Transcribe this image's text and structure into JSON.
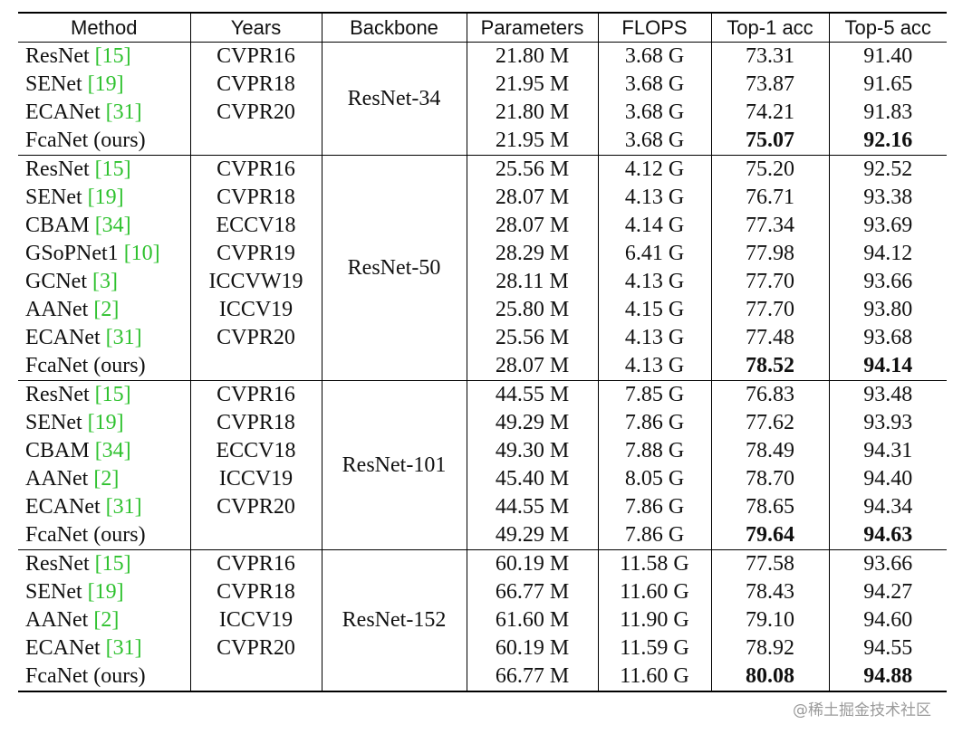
{
  "header": [
    "Method",
    "Years",
    "Backbone",
    "Parameters",
    "FLOPS",
    "Top-1 acc",
    "Top-5 acc"
  ],
  "groups": [
    {
      "backbone": "ResNet-34",
      "rows": [
        {
          "method": "ResNet",
          "cite": "[15]",
          "years": "CVPR16",
          "params": "21.80 M",
          "flops": "3.68 G",
          "top1": "73.31",
          "top5": "91.40"
        },
        {
          "method": "SENet",
          "cite": "[19]",
          "years": "CVPR18",
          "params": "21.95 M",
          "flops": "3.68 G",
          "top1": "73.87",
          "top5": "91.65"
        },
        {
          "method": "ECANet",
          "cite": "[31]",
          "years": "CVPR20",
          "params": "21.80 M",
          "flops": "3.68 G",
          "top1": "74.21",
          "top5": "91.83"
        },
        {
          "method": "FcaNet (ours)",
          "params": "21.95 M",
          "flops": "3.68 G",
          "top1": "75.07",
          "top5": "92.16"
        }
      ]
    },
    {
      "backbone": "ResNet-50",
      "rows": [
        {
          "method": "ResNet",
          "cite": "[15]",
          "years": "CVPR16",
          "params": "25.56 M",
          "flops": "4.12 G",
          "top1": "75.20",
          "top5": "92.52"
        },
        {
          "method": "SENet",
          "cite": "[19]",
          "years": "CVPR18",
          "params": "28.07 M",
          "flops": "4.13 G",
          "top1": "76.71",
          "top5": "93.38"
        },
        {
          "method": "CBAM",
          "cite": "[34]",
          "years": "ECCV18",
          "params": "28.07 M",
          "flops": "4.14 G",
          "top1": "77.34",
          "top5": "93.69"
        },
        {
          "method": "GSoPNet1",
          "cite": "[10]",
          "years": "CVPR19",
          "params": "28.29 M",
          "flops": "6.41 G",
          "top1": "77.98",
          "top5": "94.12"
        },
        {
          "method": "GCNet",
          "cite": "[3]",
          "years": "ICCVW19",
          "params": "28.11 M",
          "flops": "4.13 G",
          "top1": "77.70",
          "top5": "93.66"
        },
        {
          "method": "AANet",
          "cite": "[2]",
          "years": "ICCV19",
          "params": "25.80 M",
          "flops": "4.15 G",
          "top1": "77.70",
          "top5": "93.80"
        },
        {
          "method": "ECANet",
          "cite": "[31]",
          "years": "CVPR20",
          "params": "25.56 M",
          "flops": "4.13 G",
          "top1": "77.48",
          "top5": "93.68"
        },
        {
          "method": "FcaNet (ours)",
          "params": "28.07 M",
          "flops": "4.13 G",
          "top1": "78.52",
          "top5": "94.14"
        }
      ]
    },
    {
      "backbone": "ResNet-101",
      "rows": [
        {
          "method": "ResNet",
          "cite": "[15]",
          "years": "CVPR16",
          "params": "44.55 M",
          "flops": "7.85 G",
          "top1": "76.83",
          "top5": "93.48"
        },
        {
          "method": "SENet",
          "cite": "[19]",
          "years": "CVPR18",
          "params": "49.29 M",
          "flops": "7.86 G",
          "top1": "77.62",
          "top5": "93.93"
        },
        {
          "method": "CBAM",
          "cite": "[34]",
          "years": "ECCV18",
          "params": "49.30 M",
          "flops": "7.88 G",
          "top1": "78.49",
          "top5": "94.31"
        },
        {
          "method": "AANet",
          "cite": "[2]",
          "years": "ICCV19",
          "params": "45.40 M",
          "flops": "8.05 G",
          "top1": "78.70",
          "top5": "94.40"
        },
        {
          "method": "ECANet",
          "cite": "[31]",
          "years": "CVPR20",
          "params": "44.55 M",
          "flops": "7.86 G",
          "top1": "78.65",
          "top5": "94.34"
        },
        {
          "method": "FcaNet (ours)",
          "params": "49.29 M",
          "flops": "7.86 G",
          "top1": "79.64",
          "top5": "94.63"
        }
      ]
    },
    {
      "backbone": "ResNet-152",
      "rows": [
        {
          "method": "ResNet",
          "cite": "[15]",
          "years": "CVPR16",
          "params": "60.19 M",
          "flops": "11.58 G",
          "top1": "77.58",
          "top5": "93.66"
        },
        {
          "method": "SENet",
          "cite": "[19]",
          "years": "CVPR18",
          "params": "66.77 M",
          "flops": "11.60 G",
          "top1": "78.43",
          "top5": "94.27"
        },
        {
          "method": "AANet",
          "cite": "[2]",
          "years": "ICCV19",
          "params": "61.60 M",
          "flops": "11.90 G",
          "top1": "79.10",
          "top5": "94.60"
        },
        {
          "method": "ECANet",
          "cite": "[31]",
          "years": "CVPR20",
          "params": "60.19 M",
          "flops": "11.59 G",
          "top1": "78.92",
          "top5": "94.55"
        },
        {
          "method": "FcaNet (ours)",
          "params": "66.77 M",
          "flops": "11.60 G",
          "top1": "80.08",
          "top5": "94.88"
        }
      ]
    }
  ],
  "watermark": "@稀土掘金技术社区"
}
